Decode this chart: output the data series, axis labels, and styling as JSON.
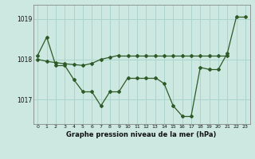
{
  "title": "Graphe pression niveau de la mer (hPa)",
  "bg_color": "#cce8e0",
  "line_color": "#2d5a27",
  "grid_color": "#aad4cc",
  "hours": [
    0,
    1,
    2,
    3,
    4,
    5,
    6,
    7,
    8,
    9,
    10,
    11,
    12,
    13,
    14,
    15,
    16,
    17,
    18,
    19,
    20,
    21,
    22,
    23
  ],
  "series1": [
    1018.1,
    1018.55,
    1017.85,
    1017.85,
    1017.5,
    1017.2,
    1017.2,
    1016.85,
    1017.2,
    1017.2,
    1017.55,
    1017.55,
    1017.55,
    1017.55,
    1017.4,
    1016.85,
    1016.6,
    1016.6,
    1017.8,
    1017.75,
    1017.75,
    1018.15,
    1019.05,
    1019.05
  ],
  "series2": [
    1018.0,
    1017.95,
    1017.92,
    1017.89,
    1017.87,
    1017.85,
    1017.9,
    1018.0,
    1018.05,
    1018.1,
    1018.1,
    1018.1,
    1018.1,
    1018.1,
    1018.1,
    1018.1,
    1018.1,
    1018.1,
    1018.1,
    1018.1,
    1018.1,
    1018.1,
    null,
    null
  ],
  "ylim_min": 1016.4,
  "ylim_max": 1019.35,
  "yticks": [
    1017,
    1018,
    1019
  ],
  "xticks": [
    0,
    1,
    2,
    3,
    4,
    5,
    6,
    7,
    8,
    9,
    10,
    11,
    12,
    13,
    14,
    15,
    16,
    17,
    18,
    19,
    20,
    21,
    22,
    23
  ]
}
